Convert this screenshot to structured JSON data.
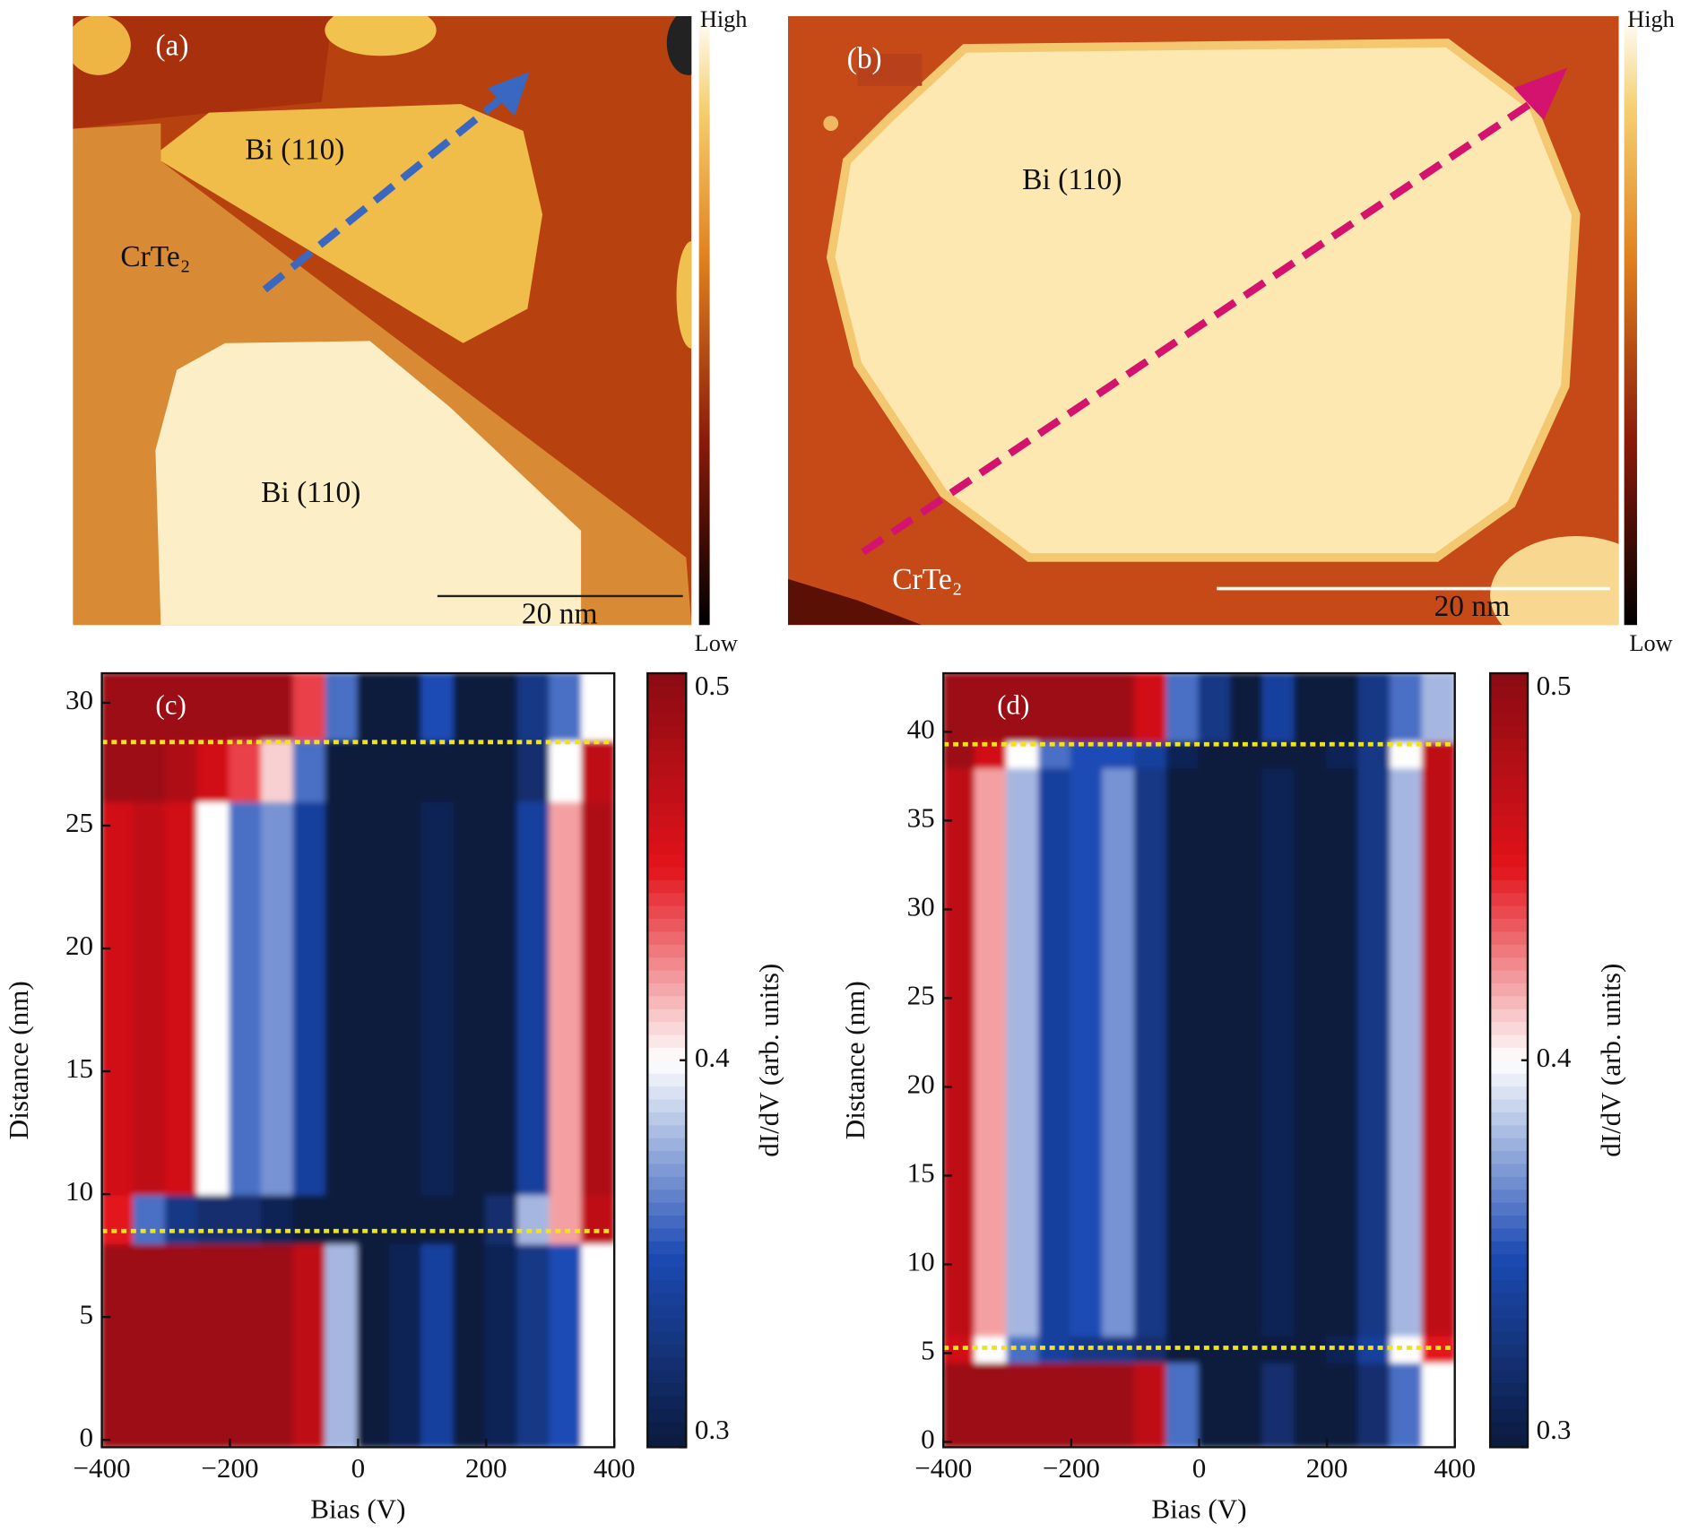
{
  "images": [
    {
      "label": "(a)",
      "texts": [
        "Bi (110)",
        "Bi (110)",
        "CrTe₂"
      ],
      "scale_bar": "20 nm",
      "colorbar": [
        "High",
        "Low"
      ]
    },
    {
      "label": "(b)",
      "texts": [
        "Bi (110)",
        "CrTe₂"
      ],
      "scale_bar": "20 nm",
      "colorbar": [
        "High",
        "Low"
      ]
    }
  ],
  "chart_data": [
    {
      "type": "heatmap",
      "label": "(c)",
      "xlabel": "Bias (V)",
      "ylabel": "Distance (nm)",
      "x_edges": [
        -400,
        -350,
        -300,
        -250,
        -200,
        -150,
        -100,
        -50,
        0,
        50,
        100,
        150,
        200,
        250,
        300,
        350,
        400
      ],
      "y_edges": [
        -0.3,
        8,
        10,
        26,
        28.5,
        31.2
      ],
      "z": [
        [
          0.49,
          0.49,
          0.49,
          0.49,
          0.49,
          0.49,
          0.47,
          0.38,
          0.3,
          0.31,
          0.34,
          0.3,
          0.31,
          0.33,
          0.35,
          0.4
        ],
        [
          0.45,
          0.36,
          0.33,
          0.32,
          0.32,
          0.31,
          0.3,
          0.3,
          0.3,
          0.3,
          0.3,
          0.3,
          0.32,
          0.38,
          0.42,
          0.47
        ],
        [
          0.46,
          0.47,
          0.46,
          0.4,
          0.36,
          0.37,
          0.34,
          0.3,
          0.3,
          0.3,
          0.31,
          0.3,
          0.3,
          0.34,
          0.42,
          0.48
        ],
        [
          0.49,
          0.49,
          0.48,
          0.46,
          0.44,
          0.41,
          0.36,
          0.3,
          0.3,
          0.3,
          0.3,
          0.3,
          0.3,
          0.32,
          0.4,
          0.47
        ],
        [
          0.49,
          0.49,
          0.49,
          0.49,
          0.49,
          0.49,
          0.44,
          0.36,
          0.3,
          0.3,
          0.35,
          0.3,
          0.3,
          0.33,
          0.36,
          0.4
        ]
      ],
      "xlim": [
        -400,
        400
      ],
      "ylim": [
        -0.3,
        31.2
      ],
      "xticks": [
        {
          "value": -400,
          "label": "−400"
        },
        {
          "value": -200,
          "label": "−200"
        },
        0,
        200,
        400
      ],
      "yticks": [
        0,
        5,
        10,
        15,
        20,
        25,
        30
      ],
      "hlines": [
        8.5,
        28.4
      ],
      "hline_color": "#f2e21a",
      "colormap": [
        "#0b1a3d",
        "#1d4bb5",
        "#ffffff",
        "#e3121a",
        "#8a0b12"
      ],
      "colorbar": {
        "label": "dI/dV (arb. units)",
        "lim": [
          0.3,
          0.5
        ],
        "ticks": [
          0.3,
          0.4,
          0.5
        ]
      }
    },
    {
      "type": "heatmap",
      "label": "(d)",
      "xlabel": "Bias (V)",
      "ylabel": "Distance (nm)",
      "x_edges": [
        -400,
        -350,
        -300,
        -250,
        -200,
        -150,
        -100,
        -50,
        0,
        50,
        100,
        150,
        200,
        250,
        300,
        350,
        400
      ],
      "y_edges": [
        -0.3,
        4.5,
        6,
        38,
        39.5,
        43.3
      ],
      "z": [
        [
          0.49,
          0.49,
          0.49,
          0.49,
          0.49,
          0.49,
          0.47,
          0.36,
          0.3,
          0.3,
          0.32,
          0.3,
          0.3,
          0.32,
          0.36,
          0.4
        ],
        [
          0.46,
          0.4,
          0.36,
          0.34,
          0.33,
          0.33,
          0.32,
          0.3,
          0.3,
          0.3,
          0.3,
          0.3,
          0.31,
          0.34,
          0.4,
          0.45
        ],
        [
          0.47,
          0.42,
          0.38,
          0.34,
          0.35,
          0.37,
          0.33,
          0.3,
          0.3,
          0.3,
          0.31,
          0.3,
          0.3,
          0.33,
          0.38,
          0.47
        ],
        [
          0.49,
          0.46,
          0.4,
          0.36,
          0.35,
          0.35,
          0.34,
          0.31,
          0.3,
          0.3,
          0.3,
          0.3,
          0.31,
          0.33,
          0.4,
          0.47
        ],
        [
          0.49,
          0.49,
          0.49,
          0.49,
          0.49,
          0.49,
          0.46,
          0.36,
          0.33,
          0.3,
          0.34,
          0.3,
          0.3,
          0.33,
          0.36,
          0.38
        ]
      ],
      "xlim": [
        -400,
        400
      ],
      "ylim": [
        -0.3,
        43.3
      ],
      "xticks": [
        {
          "value": -400,
          "label": "−400"
        },
        {
          "value": -200,
          "label": "−200"
        },
        0,
        200,
        400
      ],
      "yticks": [
        0,
        5,
        10,
        15,
        20,
        25,
        30,
        35,
        40
      ],
      "hlines": [
        5.3,
        39.3
      ],
      "hline_color": "#f2e21a",
      "colormap": [
        "#0b1a3d",
        "#1d4bb5",
        "#ffffff",
        "#e3121a",
        "#8a0b12"
      ],
      "colorbar": {
        "label": "dI/dV (arb. units)",
        "lim": [
          0.3,
          0.5
        ],
        "ticks": [
          0.3,
          0.4,
          0.5
        ]
      }
    }
  ]
}
